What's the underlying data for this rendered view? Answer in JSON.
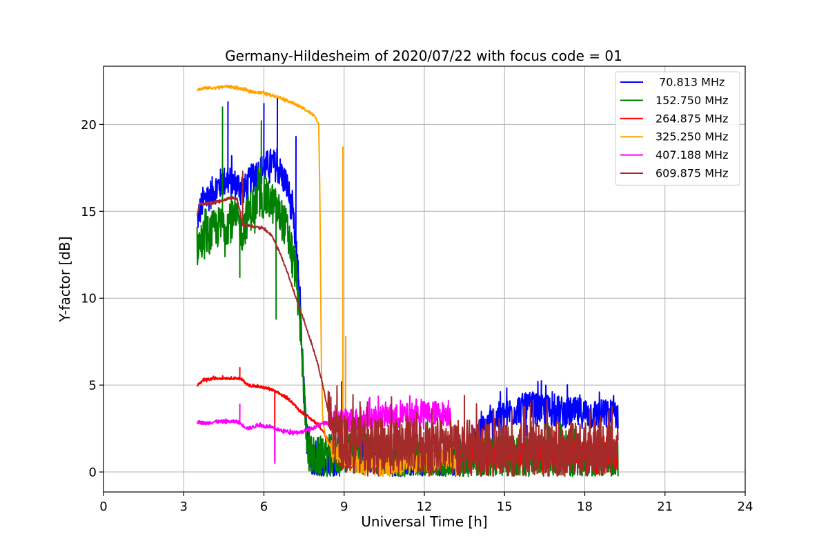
{
  "chart_data": {
    "type": "line",
    "title": "Germany-Hildesheim of 2020/07/22 with focus code = 01",
    "xlabel": "Universal Time [h]",
    "ylabel": "Y-factor [dB]",
    "xlim": [
      0,
      24
    ],
    "ylim": [
      -1.15,
      23.35
    ],
    "xticks": [
      0,
      3,
      6,
      9,
      12,
      15,
      18,
      21,
      24
    ],
    "xtick_labels": [
      "0",
      "3",
      "6",
      "9",
      "12",
      "15",
      "18",
      "21",
      "24"
    ],
    "yticks": [
      0,
      5,
      10,
      15,
      20
    ],
    "ytick_labels": [
      "0",
      "5",
      "10",
      "15",
      "20"
    ],
    "grid": true,
    "legend_position": "top-right",
    "series": [
      {
        "name": " 70.813 MHz",
        "color": "#0000ff",
        "noise": 0.9,
        "x": [
          3.5,
          3.7,
          4.0,
          4.3,
          4.6,
          5.0,
          5.3,
          5.6,
          6.0,
          6.3,
          6.6,
          6.9,
          7.1,
          7.3,
          7.45,
          7.6,
          7.8,
          8.0,
          8.3,
          8.6,
          8.9,
          9.2,
          9.6,
          10.0,
          10.5,
          11.0,
          11.5,
          12.0,
          12.5,
          13.0,
          13.4,
          13.7,
          14.0,
          14.3,
          14.6,
          15.0,
          15.5,
          16.0,
          16.5,
          17.0,
          17.5,
          18.0,
          18.5,
          19.0,
          19.25
        ],
        "y": [
          14.5,
          15.5,
          16.0,
          16.5,
          16.8,
          16.5,
          16.3,
          17.0,
          17.5,
          17.8,
          17.3,
          16.3,
          14.5,
          11.0,
          6.0,
          2.0,
          0.5,
          0.4,
          0.5,
          0.6,
          1.0,
          0.9,
          0.9,
          0.8,
          0.7,
          0.6,
          0.6,
          0.6,
          0.5,
          0.5,
          0.7,
          1.3,
          2.1,
          2.6,
          3.0,
          3.3,
          3.6,
          3.7,
          3.6,
          3.5,
          3.4,
          3.4,
          3.3,
          3.3,
          3.3
        ]
      },
      {
        "name": "152.750 MHz",
        "color": "#008000",
        "noise": 1.2,
        "x": [
          3.5,
          3.8,
          4.2,
          4.6,
          5.0,
          5.2,
          5.4,
          5.7,
          6.0,
          6.3,
          6.6,
          6.9,
          7.2,
          7.4,
          7.55,
          7.7,
          7.9,
          8.2,
          8.6,
          9.0,
          9.5,
          10.0,
          10.5,
          11.0,
          11.5,
          12.0,
          12.5,
          13.0,
          13.5,
          14.0,
          15.0,
          16.0,
          17.0,
          18.0,
          19.0,
          19.25
        ],
        "y": [
          13.0,
          13.5,
          14.0,
          14.3,
          14.5,
          13.8,
          14.8,
          15.5,
          15.8,
          15.5,
          14.8,
          13.8,
          11.5,
          7.5,
          3.0,
          1.0,
          0.8,
          0.9,
          1.0,
          1.0,
          1.1,
          1.0,
          1.0,
          0.9,
          0.9,
          0.8,
          0.7,
          0.6,
          0.7,
          0.8,
          0.9,
          0.9,
          0.9,
          0.9,
          0.8,
          0.8
        ]
      },
      {
        "name": "264.875 MHz",
        "color": "#ff0000",
        "noise": 0.08,
        "x": [
          3.5,
          3.8,
          4.2,
          4.6,
          5.0,
          5.2,
          5.4,
          5.8,
          6.2,
          6.6,
          7.0,
          7.3,
          7.6,
          7.9,
          8.2,
          8.5,
          8.8,
          9.2,
          9.6,
          10.0,
          10.5,
          11.0,
          11.5,
          12.0,
          12.5,
          13.0,
          13.3,
          13.6,
          14.0,
          15.0,
          16.0,
          17.0,
          18.0,
          19.0,
          19.25
        ],
        "y": [
          5.0,
          5.3,
          5.4,
          5.4,
          5.4,
          5.3,
          5.0,
          4.9,
          4.8,
          4.5,
          4.1,
          3.6,
          3.2,
          2.9,
          2.4,
          1.5,
          0.5,
          0.3,
          0.3,
          0.3,
          0.4,
          0.5,
          0.6,
          0.6,
          0.6,
          0.5,
          0.6,
          1.0,
          1.0,
          1.1,
          1.1,
          1.1,
          1.1,
          1.0,
          1.0
        ]
      },
      {
        "name": "325.250 MHz",
        "color": "#ffa500",
        "noise": 0.08,
        "x": [
          3.5,
          3.8,
          4.2,
          4.6,
          5.0,
          5.5,
          6.0,
          6.5,
          7.0,
          7.5,
          7.9,
          8.05,
          8.1,
          8.15,
          8.2,
          8.3,
          8.5,
          8.8,
          9.0,
          9.3,
          9.6,
          10.0,
          10.5,
          11.0,
          11.5,
          12.0,
          12.5,
          13.0,
          13.3
        ],
        "y": [
          22.0,
          22.1,
          22.1,
          22.2,
          22.1,
          21.9,
          21.8,
          21.6,
          21.3,
          20.9,
          20.5,
          20.0,
          15.0,
          6.0,
          3.0,
          2.0,
          1.5,
          1.0,
          0.8,
          0.6,
          0.5,
          0.4,
          0.3,
          0.4,
          0.5,
          0.6,
          0.7,
          0.7,
          0.7
        ]
      },
      {
        "name": "407.188 MHz",
        "color": "#ff00ff",
        "noise": 0.1,
        "x": [
          3.5,
          3.8,
          4.2,
          4.6,
          5.0,
          5.2,
          5.4,
          5.8,
          6.2,
          6.6,
          7.0,
          7.4,
          7.8,
          8.2,
          8.6,
          9.0,
          9.5,
          10.0,
          10.5,
          11.0,
          11.5,
          12.0,
          12.5,
          13.0
        ],
        "y": [
          2.9,
          2.8,
          2.9,
          2.9,
          2.9,
          2.7,
          2.5,
          2.7,
          2.6,
          2.4,
          2.3,
          2.3,
          2.5,
          2.8,
          2.9,
          3.0,
          3.0,
          3.1,
          3.2,
          3.2,
          3.3,
          3.4,
          3.4,
          3.3
        ]
      },
      {
        "name": "609.875 MHz",
        "color": "#a52a2a",
        "noise": 0.07,
        "x": [
          3.5,
          3.6,
          4.0,
          4.4,
          4.8,
          5.0,
          5.1,
          5.2,
          5.4,
          5.7,
          6.0,
          6.3,
          6.6,
          6.9,
          7.2,
          7.5,
          7.8,
          8.0,
          8.2,
          8.4,
          8.6,
          9.0,
          9.5,
          10.0,
          11.0,
          12.0,
          13.0,
          14.0,
          15.0,
          16.0,
          17.0,
          18.0,
          19.0,
          19.25
        ],
        "y": [
          14.8,
          15.4,
          15.5,
          15.6,
          15.8,
          15.7,
          15.0,
          14.2,
          14.2,
          14.1,
          14.0,
          13.6,
          12.6,
          11.4,
          10.0,
          8.7,
          7.3,
          6.3,
          5.0,
          3.5,
          2.3,
          1.8,
          1.6,
          1.5,
          1.5,
          1.5,
          1.4,
          1.4,
          1.3,
          1.3,
          1.3,
          1.3,
          1.4,
          1.4
        ]
      }
    ],
    "spikes": [
      {
        "series": 0,
        "x": 4.65,
        "y": 21.3
      },
      {
        "series": 0,
        "x": 6.5,
        "y": 21.5
      },
      {
        "series": 0,
        "x": 6.0,
        "y": 21.2
      },
      {
        "series": 0,
        "x": 7.2,
        "y": 19.3
      },
      {
        "series": 1,
        "x": 4.45,
        "y": 21.0
      },
      {
        "series": 1,
        "x": 5.1,
        "y": 11.2
      },
      {
        "series": 1,
        "x": 6.45,
        "y": 8.8
      },
      {
        "series": 1,
        "x": 5.9,
        "y": 20.2
      },
      {
        "series": 2,
        "x": 5.1,
        "y": 6.0
      },
      {
        "series": 2,
        "x": 6.4,
        "y": 0.6
      },
      {
        "series": 3,
        "x": 8.95,
        "y": 18.7
      },
      {
        "series": 3,
        "x": 9.05,
        "y": 7.8
      },
      {
        "series": 4,
        "x": 5.1,
        "y": 3.9
      },
      {
        "series": 4,
        "x": 6.4,
        "y": 0.5
      },
      {
        "series": 4,
        "x": 12.9,
        "y": 4.1
      },
      {
        "series": 5,
        "x": 8.9,
        "y": 5.2
      },
      {
        "series": 5,
        "x": 13.5,
        "y": 4.4
      },
      {
        "series": 5,
        "x": 16.0,
        "y": 0.1
      },
      {
        "series": 5,
        "x": 5.2,
        "y": 17.3
      }
    ],
    "jitter": [
      {
        "series": 5,
        "from": 8.4,
        "to": 19.25,
        "amplitude": 1.6
      },
      {
        "series": 4,
        "from": 8.4,
        "to": 13.1,
        "amplitude": 0.7
      },
      {
        "series": 2,
        "from": 13.6,
        "to": 19.25,
        "amplitude": 0.7
      },
      {
        "series": 1,
        "from": 13.4,
        "to": 19.25,
        "amplitude": 0.6
      },
      {
        "series": 3,
        "from": 8.5,
        "to": 13.3,
        "amplitude": 0.6
      }
    ]
  }
}
